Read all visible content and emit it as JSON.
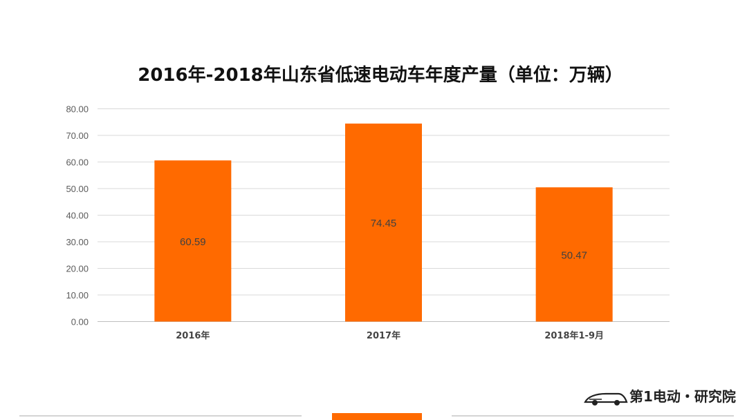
{
  "colors": {
    "bar": "#ff6a00",
    "grid": "#d9d9d9",
    "accent": "#ff6a00"
  },
  "chart_data": {
    "type": "bar",
    "title": "2016年-2018年山东省低速电动车年度产量（单位：万辆）",
    "categories": [
      "2016年",
      "2017年",
      "2018年1-9月"
    ],
    "values": [
      60.59,
      74.45,
      50.47
    ],
    "data_labels": [
      "60.59",
      "74.45",
      "50.47"
    ],
    "ylim": [
      0,
      80
    ],
    "yticks": [
      "0.00",
      "10.00",
      "20.00",
      "30.00",
      "40.00",
      "50.00",
      "60.00",
      "70.00",
      "80.00"
    ],
    "grid": true,
    "legend": "none"
  },
  "footer": {
    "brand": "第1电动・研究院"
  }
}
